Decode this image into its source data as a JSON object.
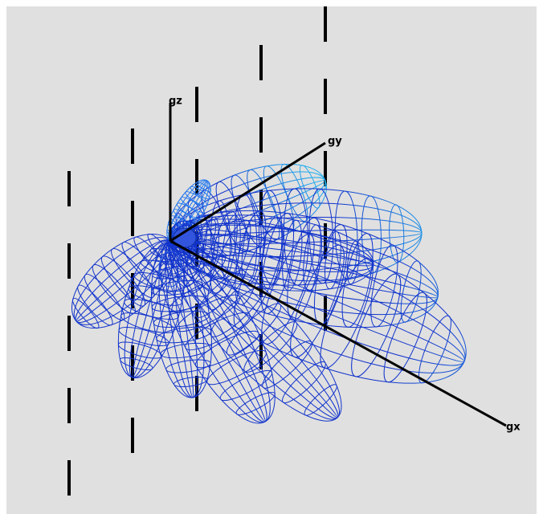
{
  "axes": {
    "z_label": "gz",
    "y_label": "gy",
    "x_label": "gx"
  }
}
